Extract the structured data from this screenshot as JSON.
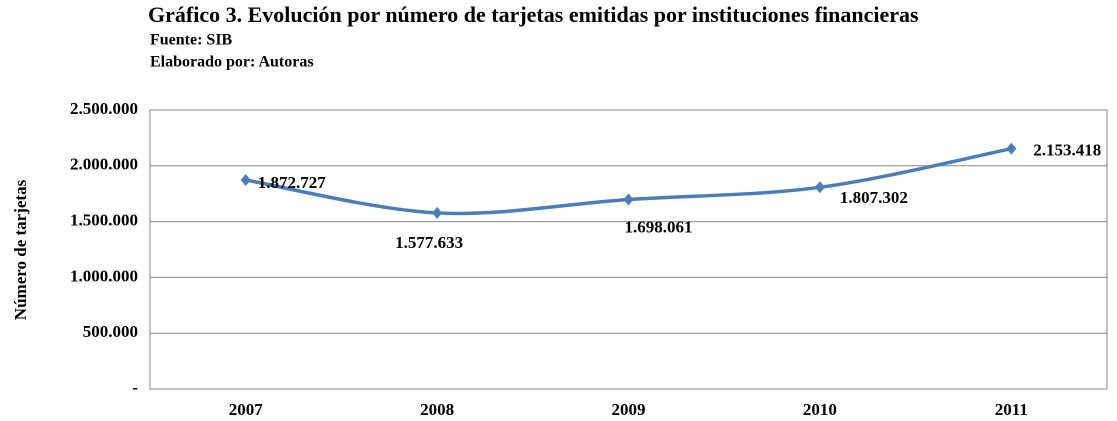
{
  "chart_data": {
    "type": "line",
    "title": "Gráfico 3. Evolución por número de tarjetas emitidas por instituciones financieras",
    "subtitle": [
      "Fuente: SIB",
      "Elaborado  por: Autoras"
    ],
    "y_label": "Número de tarjetas",
    "categories": [
      "2007",
      "2008",
      "2009",
      "2010",
      "2011"
    ],
    "series": [
      {
        "color": "#4a7ebb",
        "values": [
          1872727,
          1577633,
          1698061,
          1807302,
          2153418
        ],
        "value_labels": [
          "1.872.727",
          "1.577.633",
          "1.698.061",
          "1.807.302",
          "2.153.418"
        ]
      }
    ],
    "ylim": [
      0,
      2500000
    ],
    "yticks": [
      {
        "value": 0,
        "label": "-"
      },
      {
        "value": 500000,
        "label": "500.000"
      },
      {
        "value": 1000000,
        "label": "1.000.000"
      },
      {
        "value": 1500000,
        "label": "1.500.000"
      },
      {
        "value": 2000000,
        "label": "2.000.000"
      },
      {
        "value": 2500000,
        "label": "2.500.000"
      }
    ],
    "grid": true
  }
}
